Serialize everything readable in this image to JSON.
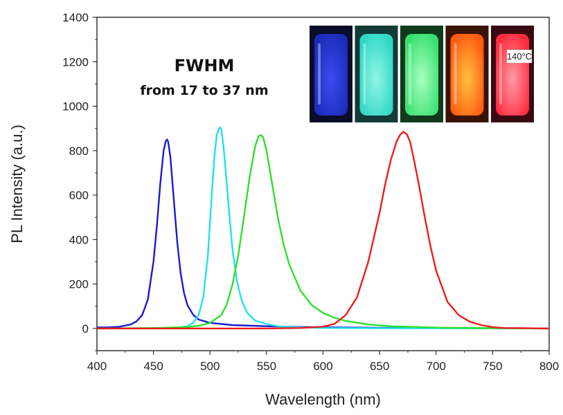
{
  "chart_data": {
    "type": "line",
    "xlabel": "Wavelength (nm)",
    "ylabel": "PL Intensity (a.u.)",
    "xlim": [
      400,
      800
    ],
    "ylim": [
      -100,
      1400
    ],
    "xticks": [
      "400",
      "450",
      "500",
      "550",
      "600",
      "650",
      "700",
      "750",
      "800"
    ],
    "yticks": [
      "0",
      "200",
      "400",
      "600",
      "800",
      "1000",
      "1200",
      "1400"
    ],
    "grid": false,
    "legend": "none",
    "annotation": {
      "title": "FWHM",
      "subtitle": "from 17 to 37 nm"
    },
    "series": [
      {
        "color": "#1a1ad0",
        "x": [
          400,
          410,
          420,
          430,
          435,
          440,
          445,
          450,
          453,
          456,
          459,
          461,
          462,
          463,
          465,
          468,
          471,
          474,
          477,
          480,
          485,
          490,
          500,
          520,
          550,
          600,
          650,
          700,
          750,
          800
        ],
        "values": [
          5,
          5,
          8,
          18,
          32,
          60,
          130,
          300,
          460,
          650,
          800,
          845,
          850,
          840,
          770,
          580,
          390,
          250,
          160,
          105,
          62,
          40,
          25,
          15,
          10,
          5,
          3,
          2,
          1,
          0
        ]
      },
      {
        "color": "#22e0ee",
        "x": [
          400,
          450,
          470,
          480,
          485,
          490,
          494,
          498,
          501,
          504,
          506,
          508,
          509,
          510,
          512,
          514,
          517,
          520,
          524,
          528,
          533,
          540,
          550,
          560,
          580,
          600,
          650,
          800
        ],
        "values": [
          0,
          1,
          3,
          10,
          25,
          60,
          140,
          320,
          560,
          780,
          870,
          900,
          905,
          895,
          820,
          700,
          520,
          350,
          210,
          125,
          70,
          35,
          20,
          10,
          5,
          2,
          1,
          0
        ]
      },
      {
        "color": "#2ee02e",
        "x": [
          400,
          450,
          480,
          490,
          500,
          510,
          515,
          520,
          525,
          530,
          535,
          540,
          543,
          545,
          547,
          550,
          555,
          560,
          565,
          570,
          580,
          590,
          600,
          610,
          620,
          640,
          660,
          700,
          750,
          800
        ],
        "values": [
          0,
          2,
          6,
          12,
          25,
          60,
          110,
          200,
          330,
          500,
          680,
          820,
          865,
          870,
          860,
          800,
          650,
          500,
          380,
          290,
          170,
          105,
          70,
          48,
          34,
          18,
          10,
          4,
          1,
          0
        ]
      },
      {
        "color": "#ee1c1c",
        "x": [
          400,
          550,
          580,
          600,
          610,
          620,
          630,
          640,
          650,
          655,
          660,
          665,
          668,
          671,
          674,
          677,
          680,
          685,
          690,
          695,
          700,
          710,
          720,
          730,
          740,
          750,
          760,
          800
        ],
        "values": [
          0,
          0,
          2,
          8,
          20,
          60,
          140,
          300,
          520,
          650,
          760,
          840,
          870,
          885,
          875,
          840,
          770,
          640,
          500,
          370,
          260,
          120,
          60,
          30,
          15,
          6,
          2,
          0
        ]
      }
    ]
  },
  "inset": {
    "label": "140°C",
    "vials": [
      {
        "glass": "#1a2bb8",
        "glow": "#3a4cf0",
        "bg": "#0a0d2a"
      },
      {
        "glass": "#2fd8c4",
        "glow": "#8ff5e6",
        "bg": "#123a36"
      },
      {
        "glass": "#38e070",
        "glow": "#a8ffc0",
        "bg": "#0f3a1c"
      },
      {
        "glass": "#ff5a10",
        "glow": "#ffc040",
        "bg": "#3a1206"
      },
      {
        "glass": "#ff2a3a",
        "glow": "#ff9aa8",
        "bg": "#3a0a12"
      }
    ]
  }
}
